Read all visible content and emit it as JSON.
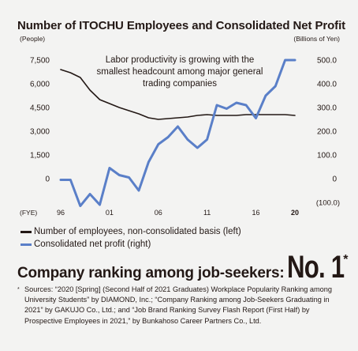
{
  "chart_data": {
    "type": "line",
    "title": "Number of ITOCHU Employees and Consolidated Net Profit",
    "left_axis_unit": "(People)",
    "right_axis_unit": "(Billions of Yen)",
    "xlabel": "(FYE)",
    "x_ticks": [
      "96",
      "01",
      "06",
      "11",
      "16",
      "20"
    ],
    "y_left_ticks": [
      "7,500",
      "6,000",
      "4,500",
      "3,000",
      "1,500",
      "0"
    ],
    "y_left_lim": [
      0,
      7500
    ],
    "y_right_ticks": [
      "500.0",
      "400.0",
      "300.0",
      "200.0",
      "100.0",
      "0",
      "(100.0)"
    ],
    "y_right_lim": [
      -100,
      500
    ],
    "annotation": "Labor productivity is growing with the smallest headcount among major general trading companies",
    "grid": false,
    "series": [
      {
        "name": "Number of employees, non-consolidated basis (left)",
        "axis": "left",
        "color": "#231815",
        "x": [
          1996,
          1997,
          1998,
          1999,
          2000,
          2001,
          2002,
          2003,
          2004,
          2005,
          2006,
          2007,
          2008,
          2009,
          2010,
          2011,
          2012,
          2013,
          2014,
          2015,
          2016,
          2017,
          2018,
          2019,
          2020
        ],
        "values": [
          6900,
          6700,
          6400,
          5600,
          5000,
          4750,
          4500,
          4300,
          4100,
          3850,
          3750,
          3800,
          3850,
          3900,
          4000,
          4050,
          4000,
          4000,
          4000,
          4050,
          4050,
          4050,
          4050,
          4050,
          4000
        ]
      },
      {
        "name": "Consolidated net profit (right)",
        "axis": "right",
        "color": "#5a7fc8",
        "x": [
          1996,
          1997,
          1998,
          1999,
          2000,
          2001,
          2002,
          2003,
          2004,
          2005,
          2006,
          2007,
          2008,
          2009,
          2010,
          2011,
          2012,
          2013,
          2014,
          2015,
          2016,
          2017,
          2018,
          2019,
          2020
        ],
        "values": [
          -5,
          -5,
          -115,
          -65,
          -110,
          45,
          15,
          5,
          -50,
          70,
          145,
          175,
          220,
          165,
          130,
          165,
          310,
          295,
          320,
          310,
          255,
          350,
          390,
          500,
          500
        ]
      }
    ]
  },
  "ranking": {
    "text": "Company ranking among job-seekers:",
    "value": "No. 1",
    "mark": "*"
  },
  "sources": {
    "star": "*",
    "text": "Sources: “2020 [Spring] (Second Half of 2021 Graduates) Workplace Popularity Ranking among University Students” by DIAMOND, Inc.; “Company Ranking among Job-Seekers Graduating in 2021” by GAKUJO Co., Ltd.; and “Job Brand Ranking Survey Flash Report (First Half) by Prospective Employees in 2021,” by Bunkahoso Career Partners Co., Ltd."
  }
}
